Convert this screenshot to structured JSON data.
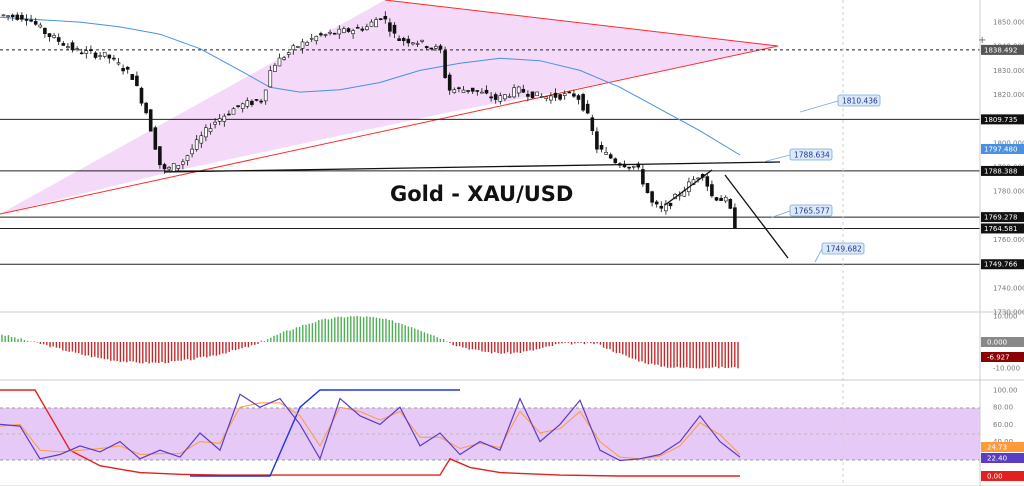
{
  "chart_data": {
    "type": "candlestick",
    "title": "Gold - XAU/USD",
    "colors": {
      "up": "#26a69a",
      "down": "#111111",
      "wedge_fill": "#f4d9f8",
      "wedge_line": "#ff2b2b",
      "ma_line": "#4a90e2",
      "hist_up": "#4caf50",
      "hist_down": "#c62828",
      "stoch_band": "#e7c9f7",
      "k_line": "#5b3cc4",
      "d_line": "#ff9a3c",
      "rsi_red": "#e32020",
      "rsi_blue": "#1f36e0"
    },
    "price_axis": {
      "range": [
        1730,
        1855
      ],
      "ticks": [
        "1850.000",
        "1840.000",
        "1830.000",
        "1820.000",
        "1810.000",
        "1800.000",
        "1790.000",
        "1780.000",
        "1770.000",
        "1760.000",
        "1750.000",
        "1740.000",
        "1730.000"
      ]
    },
    "price_levels": [
      {
        "value": 1838.492,
        "label": "1838.492",
        "color": "#555555"
      },
      {
        "value": 1809.735,
        "label": "1809.735",
        "color": "#111111"
      },
      {
        "value": 1797.48,
        "label": "1797.480",
        "color": "#4a90e2"
      },
      {
        "value": 1788.388,
        "label": "1788.388",
        "color": "#111111"
      },
      {
        "value": 1769.278,
        "label": "1769.278",
        "color": "#111111"
      },
      {
        "value": 1764.581,
        "label": "1764.581",
        "color": "#111111"
      },
      {
        "value": 1749.766,
        "label": "1749.766",
        "color": "#111111"
      }
    ],
    "callouts": [
      {
        "label": "1810.436",
        "value": 1810.436
      },
      {
        "label": "1788.634",
        "value": 1788.634
      },
      {
        "label": "1765.577",
        "value": 1765.577
      },
      {
        "label": "1749.682",
        "value": 1749.682
      }
    ],
    "ma_points": [
      [
        0,
        1852
      ],
      [
        40,
        1851
      ],
      [
        80,
        1850
      ],
      [
        120,
        1848
      ],
      [
        160,
        1845
      ],
      [
        200,
        1839
      ],
      [
        240,
        1830
      ],
      [
        270,
        1823
      ],
      [
        300,
        1821
      ],
      [
        340,
        1822
      ],
      [
        380,
        1825
      ],
      [
        420,
        1830
      ],
      [
        460,
        1833
      ],
      [
        500,
        1835
      ],
      [
        540,
        1834
      ],
      [
        580,
        1830
      ],
      [
        620,
        1823
      ],
      [
        660,
        1814
      ],
      [
        700,
        1805
      ],
      [
        740,
        1795
      ]
    ],
    "macd_axis": {
      "ticks": [
        "10.000",
        "0.000",
        "-10.000"
      ]
    },
    "macd_badges": [
      {
        "label": "0.000",
        "kind": "zero"
      },
      {
        "label": "-6.927",
        "kind": "hist"
      }
    ],
    "stoch_axis": {
      "ticks": [
        "100.00",
        "80.00",
        "60.00",
        "40.00",
        "20.00",
        "0.00"
      ]
    },
    "stoch_badges": [
      {
        "label": "24.73",
        "value": 24.73,
        "kind": "d"
      },
      {
        "label": "22.40",
        "value": 22.4,
        "kind": "k"
      },
      {
        "label": "0.00",
        "value": 0,
        "kind": "rsi"
      }
    ],
    "stoch_k": [
      [
        0,
        60
      ],
      [
        20,
        58
      ],
      [
        40,
        20
      ],
      [
        60,
        25
      ],
      [
        80,
        35
      ],
      [
        100,
        28
      ],
      [
        120,
        40
      ],
      [
        140,
        20
      ],
      [
        160,
        30
      ],
      [
        180,
        22
      ],
      [
        200,
        50
      ],
      [
        220,
        30
      ],
      [
        240,
        95
      ],
      [
        260,
        80
      ],
      [
        280,
        90
      ],
      [
        300,
        60
      ],
      [
        320,
        20
      ],
      [
        340,
        90
      ],
      [
        360,
        70
      ],
      [
        380,
        60
      ],
      [
        400,
        80
      ],
      [
        420,
        35
      ],
      [
        440,
        50
      ],
      [
        460,
        25
      ],
      [
        480,
        40
      ],
      [
        500,
        30
      ],
      [
        520,
        90
      ],
      [
        540,
        40
      ],
      [
        560,
        60
      ],
      [
        580,
        88
      ],
      [
        600,
        30
      ],
      [
        620,
        18
      ],
      [
        640,
        20
      ],
      [
        660,
        25
      ],
      [
        680,
        40
      ],
      [
        700,
        70
      ],
      [
        720,
        40
      ],
      [
        740,
        22
      ]
    ],
    "stoch_d": [
      [
        0,
        58
      ],
      [
        20,
        60
      ],
      [
        40,
        30
      ],
      [
        60,
        28
      ],
      [
        80,
        30
      ],
      [
        100,
        32
      ],
      [
        120,
        35
      ],
      [
        140,
        25
      ],
      [
        160,
        26
      ],
      [
        180,
        26
      ],
      [
        200,
        40
      ],
      [
        220,
        38
      ],
      [
        240,
        80
      ],
      [
        260,
        85
      ],
      [
        280,
        85
      ],
      [
        300,
        70
      ],
      [
        320,
        35
      ],
      [
        340,
        80
      ],
      [
        360,
        75
      ],
      [
        380,
        65
      ],
      [
        400,
        75
      ],
      [
        420,
        45
      ],
      [
        440,
        45
      ],
      [
        460,
        32
      ],
      [
        480,
        38
      ],
      [
        500,
        33
      ],
      [
        520,
        75
      ],
      [
        540,
        50
      ],
      [
        560,
        55
      ],
      [
        580,
        75
      ],
      [
        600,
        40
      ],
      [
        620,
        22
      ],
      [
        640,
        20
      ],
      [
        660,
        23
      ],
      [
        680,
        35
      ],
      [
        700,
        62
      ],
      [
        720,
        48
      ],
      [
        740,
        25
      ]
    ],
    "rsi_red": [
      [
        0,
        100
      ],
      [
        35,
        100
      ],
      [
        50,
        70
      ],
      [
        70,
        30
      ],
      [
        100,
        12
      ],
      [
        140,
        4
      ],
      [
        180,
        2
      ],
      [
        220,
        1
      ],
      [
        270,
        1
      ],
      [
        300,
        1
      ],
      [
        440,
        1
      ],
      [
        450,
        20
      ],
      [
        470,
        10
      ],
      [
        500,
        4
      ],
      [
        560,
        1
      ],
      [
        620,
        0
      ],
      [
        700,
        0
      ],
      [
        740,
        0
      ]
    ],
    "rsi_blue": [
      [
        190,
        0
      ],
      [
        270,
        0
      ],
      [
        300,
        80
      ],
      [
        320,
        100
      ],
      [
        360,
        100
      ],
      [
        440,
        100
      ],
      [
        460,
        100
      ]
    ]
  }
}
